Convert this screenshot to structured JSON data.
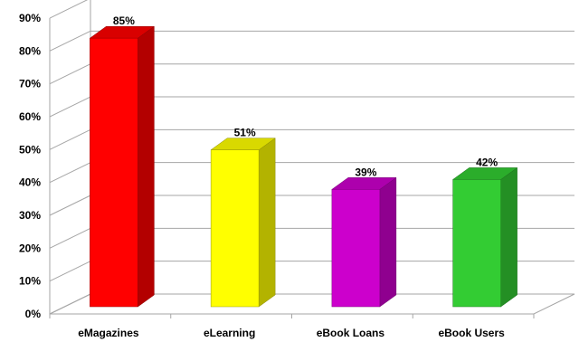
{
  "chart_data": {
    "type": "bar",
    "categories": [
      "eMagazines",
      "eLearning",
      "eBook Loans",
      "eBook Users"
    ],
    "values": [
      85,
      51,
      39,
      42
    ],
    "value_labels": [
      "85%",
      "51%",
      "39%",
      "42%"
    ],
    "ylim": [
      0,
      90
    ],
    "ytick_labels": [
      "0%",
      "10%",
      "20%",
      "30%",
      "40%",
      "50%",
      "60%",
      "70%",
      "80%",
      "90%"
    ],
    "grid": true,
    "three_d": true,
    "colors": [
      "#ff0000",
      "#ffff00",
      "#cc00cc",
      "#33cc33"
    ]
  }
}
